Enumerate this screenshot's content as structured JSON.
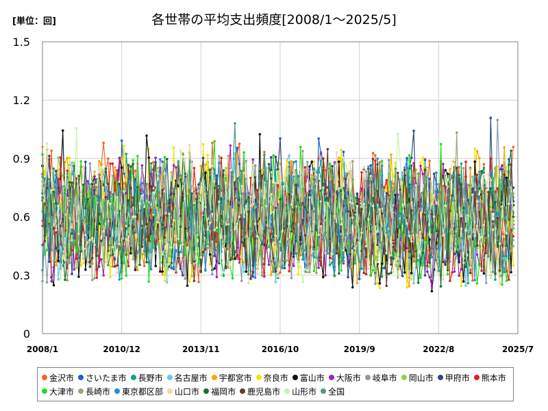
{
  "chart_data": {
    "type": "line",
    "title": "各世帯の平均支出頻度[2008/1〜2025/5]",
    "unit_label": "[単位：回]",
    "xlabel": "",
    "ylabel": "",
    "ylim": [
      0,
      1.5
    ],
    "yticks": [
      "0",
      "0.3",
      "0.6",
      "0.9",
      "1.2",
      "1.5"
    ],
    "xlim": [
      "2008/1",
      "2025/7"
    ],
    "xticks": [
      "2008/1",
      "2010/12",
      "2013/11",
      "2016/10",
      "2019/9",
      "2022/8",
      "2025/7"
    ],
    "grid": true,
    "legend_position": "bottom",
    "series": [
      {
        "name": "金沢市",
        "color": "#f26522",
        "base": 0.62,
        "amp": 0.24,
        "seed": 3,
        "last": 0.96
      },
      {
        "name": "さいたま市",
        "color": "#1f5fd6",
        "base": 0.61,
        "amp": 0.23,
        "seed": 7,
        "last": 0.52
      },
      {
        "name": "長野市",
        "color": "#16a085",
        "base": 0.6,
        "amp": 0.22,
        "seed": 11,
        "last": 0.62
      },
      {
        "name": "名古屋市",
        "color": "#6cc7e8",
        "base": 0.59,
        "amp": 0.22,
        "seed": 13,
        "last": 0.48
      },
      {
        "name": "宇都宮市",
        "color": "#f7a800",
        "base": 0.63,
        "amp": 0.25,
        "seed": 17,
        "last": 0.72
      },
      {
        "name": "奈良市",
        "color": "#f4e300",
        "base": 0.6,
        "amp": 0.26,
        "seed": 19,
        "last": 0.35
      },
      {
        "name": "富山市",
        "color": "#111111",
        "base": 0.58,
        "amp": 0.23,
        "seed": 23,
        "last": 0.66
      },
      {
        "name": "大阪市",
        "color": "#a020c0",
        "base": 0.59,
        "amp": 0.21,
        "seed": 29,
        "last": 0.56
      },
      {
        "name": "岐阜市",
        "color": "#8a9aa8",
        "base": 0.58,
        "amp": 0.22,
        "seed": 31,
        "last": 0.6
      },
      {
        "name": "岡山市",
        "color": "#8fd14f",
        "base": 0.6,
        "amp": 0.22,
        "seed": 37,
        "last": 0.62
      },
      {
        "name": "甲府市",
        "color": "#2e4a7a",
        "base": 0.59,
        "amp": 0.23,
        "seed": 41,
        "last": 0.75
      },
      {
        "name": "熊本市",
        "color": "#e02020",
        "base": 0.6,
        "amp": 0.22,
        "seed": 43,
        "last": 0.5
      },
      {
        "name": "大津市",
        "color": "#22dd22",
        "base": 0.6,
        "amp": 0.23,
        "seed": 47,
        "last": 0.58
      },
      {
        "name": "長崎市",
        "color": "#9aa878",
        "base": 0.58,
        "amp": 0.21,
        "seed": 53,
        "last": 0.45
      },
      {
        "name": "東京都区部",
        "color": "#2a8ad8",
        "base": 0.6,
        "amp": 0.21,
        "seed": 59,
        "last": 0.54
      },
      {
        "name": "山口市",
        "color": "#f5d6a0",
        "base": 0.59,
        "amp": 0.22,
        "seed": 61,
        "last": 0.52
      },
      {
        "name": "福岡市",
        "color": "#1a6e3a",
        "base": 0.59,
        "amp": 0.22,
        "seed": 67,
        "last": 0.6
      },
      {
        "name": "鹿児島市",
        "color": "#6b3a2a",
        "base": 0.59,
        "amp": 0.22,
        "seed": 71,
        "last": 0.68
      },
      {
        "name": "山形市",
        "color": "#c9f0b0",
        "base": 0.59,
        "amp": 0.22,
        "seed": 73,
        "last": 0.64
      },
      {
        "name": "全国",
        "color": "#4f9a8a",
        "base": 0.6,
        "amp": 0.18,
        "seed": 79,
        "last": 0.7
      }
    ]
  }
}
